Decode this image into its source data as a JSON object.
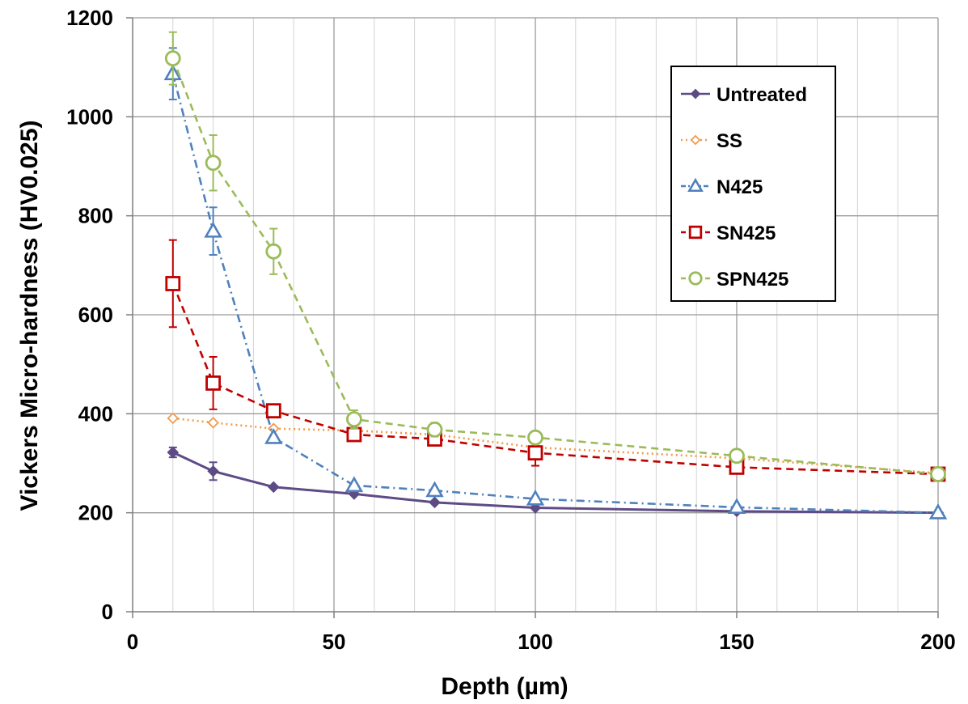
{
  "chart_data": {
    "type": "line",
    "xlabel": "Depth (µm)",
    "ylabel": "Vickers Micro-hardness (HV0.025)",
    "xlim": [
      0,
      200
    ],
    "ylim": [
      0,
      1200
    ],
    "x_ticks": [
      "0",
      "50",
      "100",
      "150",
      "200"
    ],
    "y_ticks": [
      "0",
      "200",
      "400",
      "600",
      "800",
      "1000",
      "1200"
    ],
    "grid": "major and minor on both axes",
    "legend_position": "top-right",
    "series": [
      {
        "name": "Untreated",
        "color": "#5E4B86",
        "marker": "diamond-filled",
        "line_style": "solid",
        "x": [
          10,
          20,
          35,
          55,
          75,
          100,
          150,
          200
        ],
        "y": [
          322,
          284,
          252,
          238,
          221,
          210,
          203,
          200
        ],
        "err": [
          10,
          18,
          0,
          0,
          0,
          0,
          0,
          0
        ]
      },
      {
        "name": "SS",
        "color": "#F39A4A",
        "marker": "diamond-open",
        "line_style": "dotted",
        "x": [
          10,
          20,
          35,
          55,
          75,
          100,
          150,
          200
        ],
        "y": [
          391,
          382,
          370,
          366,
          358,
          332,
          310,
          280
        ],
        "err": [
          0,
          0,
          0,
          0,
          0,
          0,
          0,
          0
        ]
      },
      {
        "name": "N425",
        "color": "#4F81BD",
        "marker": "triangle-open",
        "line_style": "dash-dot",
        "x": [
          10,
          20,
          35,
          55,
          75,
          100,
          150,
          200
        ],
        "y": [
          1087,
          769,
          352,
          255,
          245,
          228,
          211,
          200
        ],
        "err": [
          52,
          48,
          0,
          0,
          0,
          0,
          0,
          0
        ]
      },
      {
        "name": "SN425",
        "color": "#C00000",
        "marker": "square-open",
        "line_style": "dashed",
        "x": [
          10,
          20,
          35,
          55,
          75,
          100,
          150,
          200
        ],
        "y": [
          663,
          462,
          406,
          358,
          349,
          321,
          292,
          278
        ],
        "err": [
          88,
          53,
          0,
          0,
          0,
          26,
          0,
          0
        ]
      },
      {
        "name": "SPN425",
        "color": "#9BBB59",
        "marker": "circle-open",
        "line_style": "dashed",
        "x": [
          10,
          20,
          35,
          55,
          75,
          100,
          150,
          200
        ],
        "y": [
          1118,
          907,
          728,
          389,
          368,
          352,
          315,
          278
        ],
        "err": [
          53,
          56,
          46,
          18,
          14,
          0,
          0,
          0
        ]
      }
    ]
  }
}
